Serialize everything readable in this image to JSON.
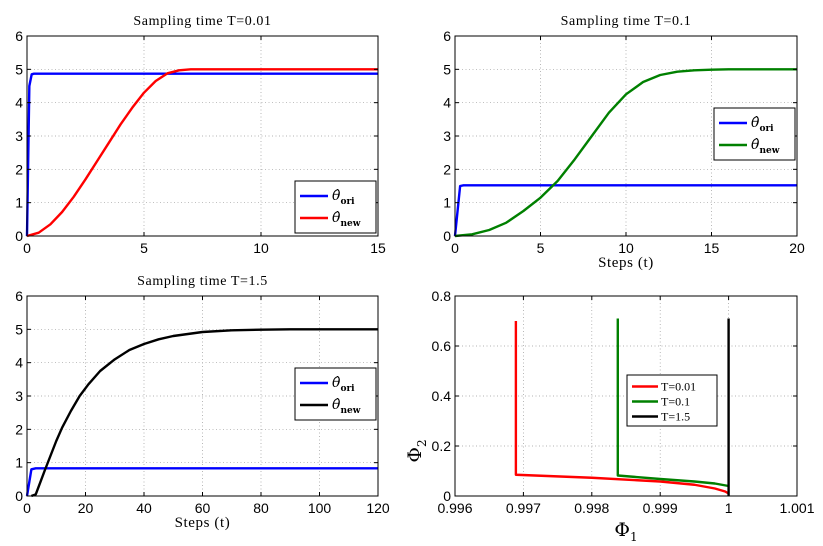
{
  "chart_data": [
    {
      "type": "line",
      "title": "Sampling time T=0.01",
      "xlabel": "",
      "ylabel": "",
      "xlim": [
        0,
        15
      ],
      "ylim": [
        0,
        6
      ],
      "xticks": [
        0,
        5,
        10,
        15
      ],
      "yticks": [
        0,
        1,
        2,
        3,
        4,
        5,
        6
      ],
      "grid": true,
      "legend_position": "bottom-right",
      "series": [
        {
          "name": "θ̂ ori",
          "legend_main": "θ̂",
          "legend_sub": "ori",
          "color": "#0000ff",
          "x": [
            0,
            0.1,
            0.2,
            0.3,
            15
          ],
          "y": [
            0,
            4.5,
            4.85,
            4.87,
            4.87
          ]
        },
        {
          "name": "θ̂ new",
          "legend_main": "θ̂",
          "legend_sub": "new",
          "color": "#ff0000",
          "x": [
            0,
            0.5,
            1,
            1.5,
            2,
            2.5,
            3,
            3.5,
            4,
            4.5,
            5,
            5.5,
            6,
            6.5,
            7,
            8,
            10,
            15
          ],
          "y": [
            0,
            0.1,
            0.35,
            0.72,
            1.18,
            1.7,
            2.25,
            2.8,
            3.35,
            3.85,
            4.3,
            4.65,
            4.88,
            4.97,
            5.0,
            5.0,
            5.0,
            5.0
          ]
        }
      ]
    },
    {
      "type": "line",
      "title": "Sampling time T=0.1",
      "xlabel": "Steps (t)",
      "ylabel": "",
      "xlim": [
        0,
        20
      ],
      "ylim": [
        0,
        6
      ],
      "xticks": [
        0,
        5,
        10,
        15,
        20
      ],
      "yticks": [
        0,
        1,
        2,
        3,
        4,
        5,
        6
      ],
      "grid": true,
      "legend_position": "right",
      "series": [
        {
          "name": "θ̂ ori",
          "legend_main": "θ̂",
          "legend_sub": "ori",
          "color": "#0000ff",
          "x": [
            0,
            0.3,
            0.5,
            20
          ],
          "y": [
            0,
            1.5,
            1.52,
            1.52
          ]
        },
        {
          "name": "θ̂ new",
          "legend_main": "θ̂",
          "legend_sub": "new",
          "color": "#008000",
          "x": [
            0,
            1,
            2,
            3,
            4,
            5,
            6,
            7,
            8,
            9,
            10,
            11,
            12,
            13,
            14,
            15,
            16,
            18,
            20
          ],
          "y": [
            0,
            0.05,
            0.18,
            0.4,
            0.75,
            1.15,
            1.65,
            2.3,
            3.0,
            3.7,
            4.25,
            4.62,
            4.83,
            4.93,
            4.97,
            4.99,
            5.0,
            5.0,
            5.0
          ]
        }
      ]
    },
    {
      "type": "line",
      "title": "Sampling time T=1.5",
      "xlabel": "Steps (t)",
      "ylabel": "",
      "xlim": [
        0,
        120
      ],
      "ylim": [
        0,
        6
      ],
      "xticks": [
        0,
        20,
        40,
        60,
        80,
        100,
        120
      ],
      "yticks": [
        0,
        1,
        2,
        3,
        4,
        5,
        6
      ],
      "grid": true,
      "legend_position": "right",
      "series": [
        {
          "name": "θ̂ ori",
          "legend_main": "θ̂",
          "legend_sub": "ori",
          "color": "#0000ff",
          "x": [
            0,
            1.5,
            3,
            120
          ],
          "y": [
            0,
            0.8,
            0.83,
            0.83
          ]
        },
        {
          "name": "θ̂ new",
          "legend_main": "θ̂",
          "legend_sub": "new",
          "color": "#000000",
          "x": [
            1.5,
            3,
            4.5,
            6,
            8,
            10,
            12,
            15,
            18,
            21,
            25,
            30,
            35,
            40,
            45,
            50,
            60,
            70,
            80,
            90,
            100,
            120
          ],
          "y": [
            0,
            0.05,
            0.4,
            0.75,
            1.2,
            1.65,
            2.05,
            2.55,
            3.0,
            3.35,
            3.75,
            4.1,
            4.38,
            4.56,
            4.7,
            4.8,
            4.92,
            4.97,
            4.99,
            5.0,
            5.0,
            5.0
          ]
        }
      ]
    },
    {
      "type": "line",
      "title": "",
      "xlabel": "Φ1",
      "xlabel_main": "Φ",
      "xlabel_sub": "1",
      "ylabel": "Φ2",
      "ylabel_main": "Φ",
      "ylabel_sub": "2",
      "xlim": [
        0.996,
        1.001
      ],
      "ylim": [
        0,
        0.8
      ],
      "xticks": [
        0.996,
        0.997,
        0.998,
        0.999,
        1,
        1.001
      ],
      "xtick_labels": [
        "0.996",
        "0.997",
        "0.998",
        "0.999",
        "1",
        "1.001"
      ],
      "yticks": [
        0,
        0.2,
        0.4,
        0.6,
        0.8
      ],
      "grid": true,
      "legend_position": "right",
      "series": [
        {
          "name": "T=0.01",
          "color": "#ff0000",
          "x": [
            0.99689,
            0.99689,
            0.99689,
            0.998,
            0.999,
            0.9995,
            0.9998,
            0.99995,
            1.0
          ],
          "y": [
            0.7,
            0.3,
            0.085,
            0.073,
            0.058,
            0.045,
            0.03,
            0.018,
            0.01
          ]
        },
        {
          "name": "T=0.1",
          "color": "#008000",
          "x": [
            0.99838,
            0.99838,
            0.99838,
            0.999,
            0.9995,
            0.9998,
            1.0
          ],
          "y": [
            0.71,
            0.3,
            0.082,
            0.068,
            0.058,
            0.05,
            0.04
          ]
        },
        {
          "name": "T=1.5",
          "color": "#000000",
          "x": [
            1.0,
            1.0,
            1.0
          ],
          "y": [
            0.71,
            0.3,
            0.0
          ]
        }
      ]
    }
  ]
}
